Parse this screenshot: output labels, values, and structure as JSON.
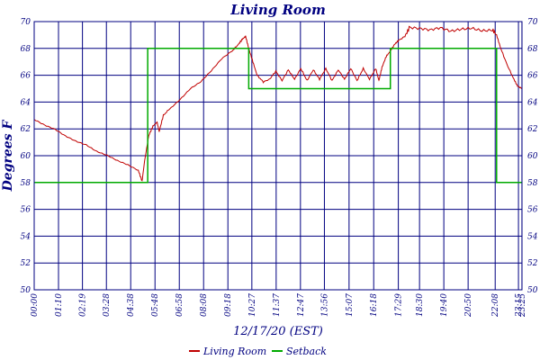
{
  "chart_data": {
    "type": "line",
    "title": "Living Room",
    "xlabel": "12/17/20 (EST)",
    "ylabel": "Degrees F",
    "ylim": [
      50,
      70
    ],
    "y_ticks": [
      50,
      52,
      54,
      56,
      58,
      60,
      62,
      64,
      66,
      68,
      70
    ],
    "x_range_hours": [
      0,
      23.42
    ],
    "x_tick_labels": [
      "00:00",
      "01:10",
      "02:19",
      "03:28",
      "04:38",
      "05:48",
      "06:58",
      "08:08",
      "09:18",
      "10:27",
      "11:37",
      "12:47",
      "13:56",
      "15:07",
      "16:18",
      "17:29",
      "18:30",
      "19:40",
      "20:50",
      "22:08",
      "23:15",
      "23:25"
    ],
    "x_tick_hours": [
      0,
      1.167,
      2.317,
      3.467,
      4.633,
      5.8,
      6.967,
      8.133,
      9.3,
      10.45,
      11.617,
      12.783,
      13.933,
      15.117,
      16.3,
      17.483,
      18.5,
      19.667,
      20.833,
      22.133,
      23.25,
      23.417
    ],
    "grid": true,
    "legend_position": "bottom",
    "series": [
      {
        "name": "Living Room",
        "color": "#c00000",
        "points": [
          [
            0,
            62.7
          ],
          [
            0.5,
            62.3
          ],
          [
            1,
            62.0
          ],
          [
            1.5,
            61.5
          ],
          [
            2,
            61.1
          ],
          [
            2.5,
            60.8
          ],
          [
            3,
            60.3
          ],
          [
            3.5,
            60.0
          ],
          [
            4,
            59.6
          ],
          [
            4.5,
            59.3
          ],
          [
            5,
            58.9
          ],
          [
            5.18,
            58.1
          ],
          [
            5.3,
            59.6
          ],
          [
            5.5,
            61.5
          ],
          [
            5.7,
            62.2
          ],
          [
            5.9,
            62.5
          ],
          [
            6,
            61.8
          ],
          [
            6.2,
            63.0
          ],
          [
            6.5,
            63.5
          ],
          [
            7,
            64.2
          ],
          [
            7.5,
            65.0
          ],
          [
            8,
            65.5
          ],
          [
            8.5,
            66.3
          ],
          [
            9,
            67.2
          ],
          [
            9.5,
            67.8
          ],
          [
            9.8,
            68.3
          ],
          [
            10,
            68.7
          ],
          [
            10.15,
            68.9
          ],
          [
            10.3,
            68.0
          ],
          [
            10.5,
            67.0
          ],
          [
            10.7,
            66.0
          ],
          [
            11,
            65.5
          ],
          [
            11.3,
            65.7
          ],
          [
            11.6,
            66.3
          ],
          [
            11.9,
            65.6
          ],
          [
            12.2,
            66.4
          ],
          [
            12.5,
            65.7
          ],
          [
            12.8,
            66.5
          ],
          [
            13.1,
            65.6
          ],
          [
            13.4,
            66.4
          ],
          [
            13.7,
            65.7
          ],
          [
            14,
            66.5
          ],
          [
            14.3,
            65.6
          ],
          [
            14.6,
            66.4
          ],
          [
            14.9,
            65.7
          ],
          [
            15.2,
            66.5
          ],
          [
            15.5,
            65.6
          ],
          [
            15.8,
            66.5
          ],
          [
            16.1,
            65.7
          ],
          [
            16.4,
            66.5
          ],
          [
            16.55,
            65.6
          ],
          [
            16.7,
            66.6
          ],
          [
            16.9,
            67.4
          ],
          [
            17.1,
            67.8
          ],
          [
            17.3,
            68.3
          ],
          [
            17.5,
            68.6
          ],
          [
            17.8,
            68.9
          ],
          [
            18,
            69.5
          ],
          [
            18.5,
            69.4
          ],
          [
            19,
            69.3
          ],
          [
            19.5,
            69.5
          ],
          [
            20,
            69.3
          ],
          [
            20.5,
            69.5
          ],
          [
            21,
            69.6
          ],
          [
            21.5,
            69.4
          ],
          [
            22,
            69.4
          ],
          [
            22.2,
            69.0
          ],
          [
            22.4,
            68.0
          ],
          [
            22.7,
            66.8
          ],
          [
            23,
            65.8
          ],
          [
            23.2,
            65.2
          ],
          [
            23.42,
            65.0
          ]
        ]
      },
      {
        "name": "Setback",
        "color": "#00aa00",
        "points": [
          [
            0,
            58
          ],
          [
            5.45,
            58
          ],
          [
            5.45,
            68
          ],
          [
            10.3,
            68
          ],
          [
            10.3,
            65
          ],
          [
            17.1,
            65
          ],
          [
            17.1,
            68
          ],
          [
            22.2,
            68
          ],
          [
            22.2,
            58
          ],
          [
            23.42,
            58
          ]
        ]
      }
    ]
  }
}
